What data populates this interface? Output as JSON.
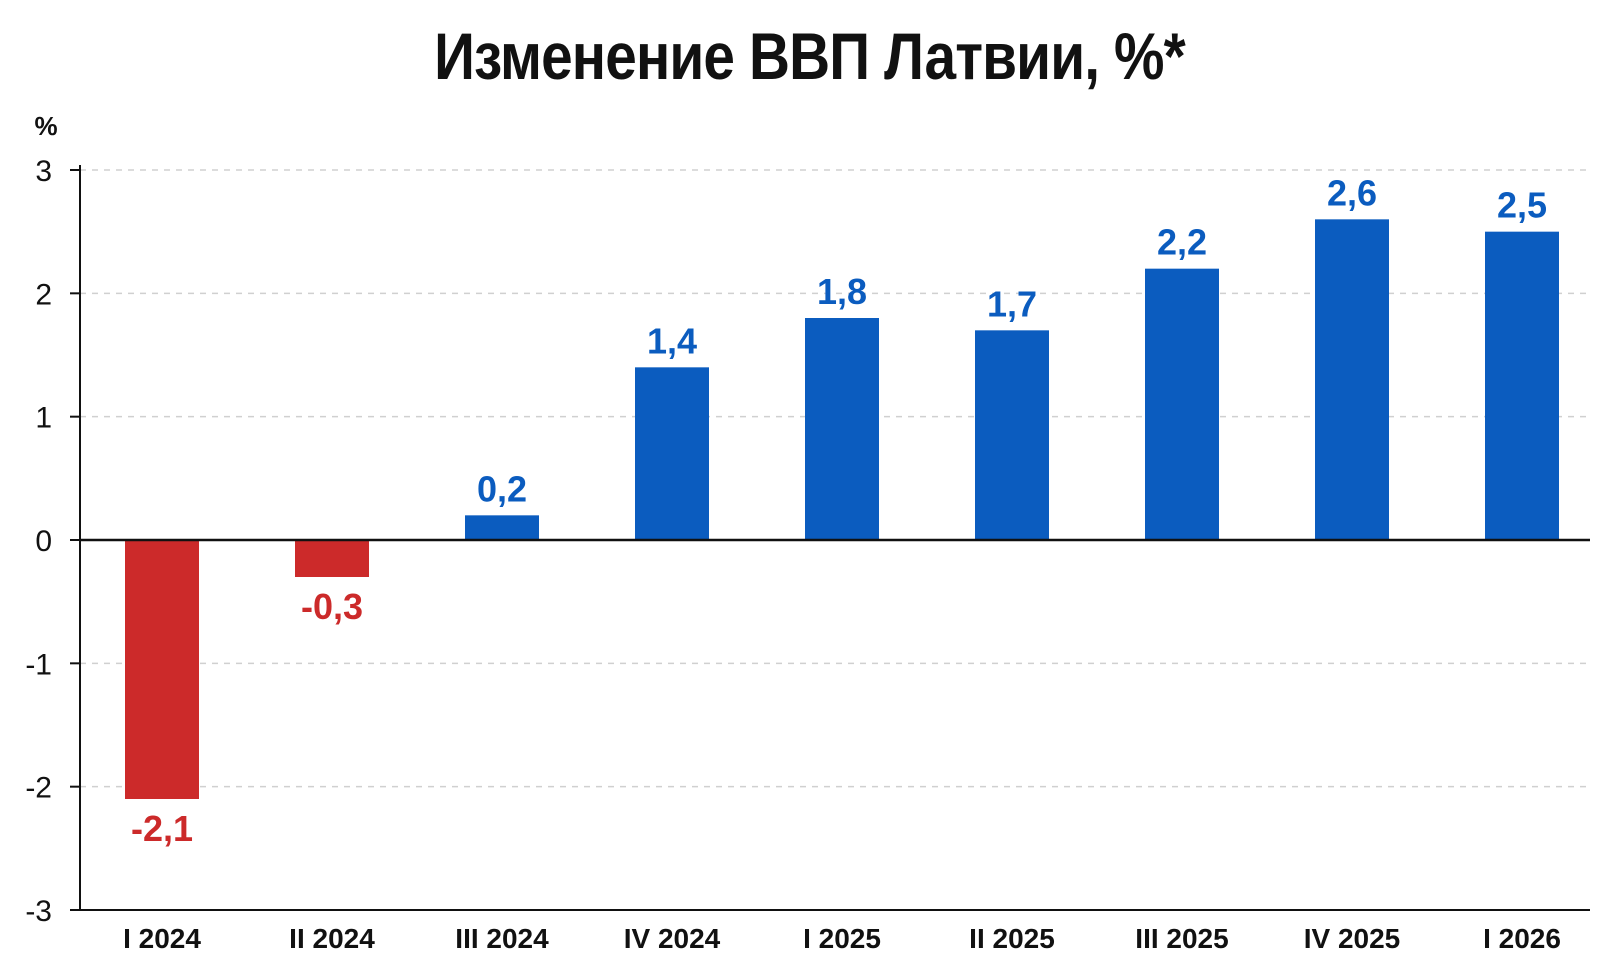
{
  "chart_data": {
    "type": "bar",
    "title": "Изменение ВВП Латвии, %*",
    "ylabel": "%",
    "xlabel": "",
    "categories": [
      "I 2024",
      "II 2024",
      "III 2024",
      "IV 2024",
      "I 2025",
      "II 2025",
      "III 2025",
      "IV 2025",
      "I 2026"
    ],
    "values": [
      -2.1,
      -0.3,
      0.2,
      1.4,
      1.8,
      1.7,
      2.2,
      2.6,
      2.5
    ],
    "value_labels": [
      "-2,1",
      "-0,3",
      "0,2",
      "1,4",
      "1,8",
      "1,7",
      "2,2",
      "2,6",
      "2,5"
    ],
    "ylim": [
      -3,
      3
    ],
    "yticks": [
      "-3",
      "-2",
      "-1",
      "0",
      "1",
      "2",
      "3"
    ],
    "grid": true,
    "colors": {
      "positive": "#0b5cbf",
      "negative": "#cc2a2a",
      "grid": "#d0d0d0",
      "axis": "#111111"
    }
  }
}
